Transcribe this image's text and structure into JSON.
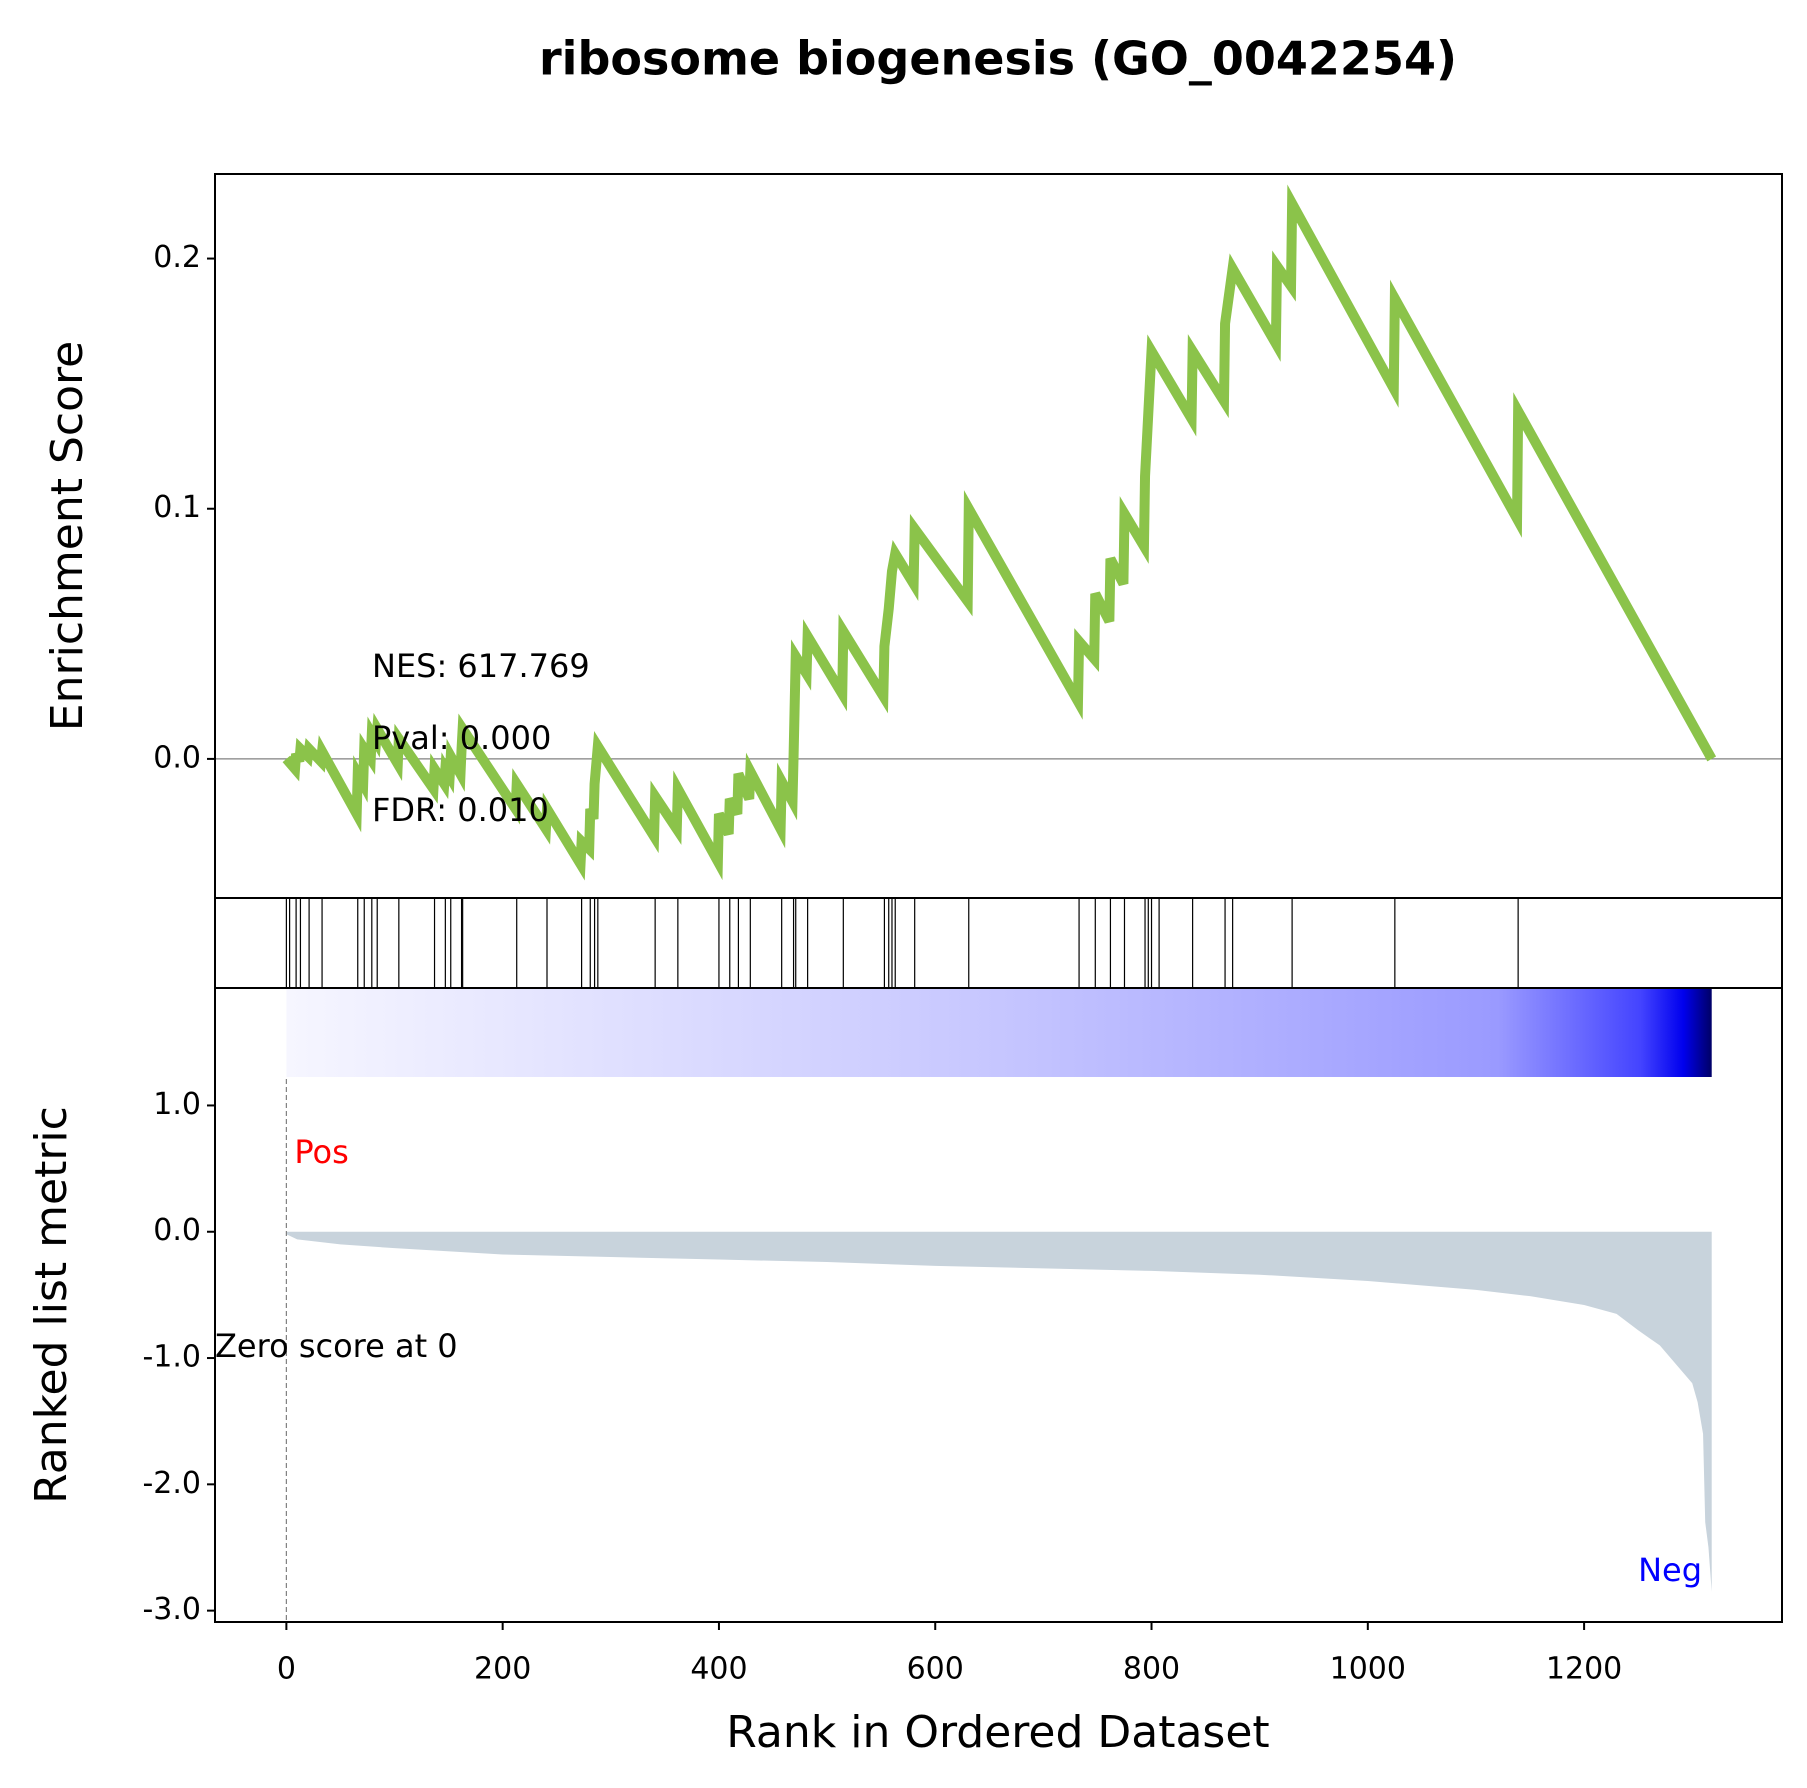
{
  "chart_data": [
    {
      "type": "line",
      "title": "ribosome biogenesis (GO_0042254)",
      "ylabel": "Enrichment Score",
      "color": "#8bc34a",
      "x": [
        0,
        8,
        9,
        12,
        13,
        20,
        21,
        32,
        33,
        65,
        66,
        71,
        72,
        78,
        79,
        83,
        84,
        103,
        104,
        136,
        137,
        146,
        147,
        151,
        152,
        161,
        162,
        163,
        212,
        213,
        240,
        241,
        272,
        273,
        280,
        281,
        284,
        285,
        288,
        340,
        341,
        361,
        362,
        399,
        400,
        409,
        410,
        417,
        418,
        428,
        429,
        457,
        458,
        468,
        469,
        471,
        481,
        482,
        514,
        515,
        552,
        553,
        557,
        560,
        563,
        580,
        581,
        630,
        631,
        732,
        733,
        747,
        748,
        761,
        762,
        774,
        775,
        793,
        794,
        797,
        800,
        837,
        838,
        867,
        868,
        875,
        915,
        916,
        929,
        930,
        1024,
        1025,
        1138,
        1139,
        1318
      ],
      "values": [
        0.0,
        -0.004,
        0.002,
        -0.001,
        0.004,
        0.001,
        0.004,
        -0.001,
        0.003,
        -0.022,
        -0.006,
        -0.01,
        0.004,
        0.0,
        0.01,
        0.007,
        0.012,
        -0.002,
        0.008,
        -0.012,
        -0.004,
        -0.01,
        -0.004,
        -0.007,
        0.001,
        -0.006,
        0.004,
        0.012,
        -0.02,
        -0.01,
        -0.028,
        -0.02,
        -0.042,
        -0.033,
        -0.036,
        -0.02,
        -0.024,
        -0.01,
        0.005,
        -0.031,
        -0.015,
        -0.028,
        -0.012,
        -0.041,
        -0.022,
        -0.03,
        -0.016,
        -0.022,
        -0.006,
        -0.016,
        -0.005,
        -0.028,
        -0.009,
        -0.017,
        0.001,
        0.041,
        0.034,
        0.049,
        0.026,
        0.051,
        0.025,
        0.045,
        0.06,
        0.075,
        0.082,
        0.07,
        0.092,
        0.063,
        0.1,
        0.023,
        0.047,
        0.04,
        0.066,
        0.055,
        0.08,
        0.07,
        0.098,
        0.085,
        0.113,
        0.138,
        0.163,
        0.136,
        0.163,
        0.143,
        0.174,
        0.196,
        0.166,
        0.197,
        0.189,
        0.222,
        0.148,
        0.184,
        0.096,
        0.139,
        0.0
      ],
      "xlim": [
        -66,
        1383
      ],
      "ylim": [
        -0.0556,
        0.2338
      ],
      "yticks": [
        {
          "value": 0,
          "label": "0.0"
        },
        0.1,
        0.2
      ],
      "annotations": [
        "NES: 617.769",
        "Pval: 0.000",
        "FDR: 0.010"
      ]
    },
    {
      "type": "rug",
      "color": "#000000",
      "xlim": [
        -66,
        1383
      ],
      "hits": [
        0,
        3,
        9,
        13,
        21,
        33,
        66,
        72,
        79,
        84,
        104,
        137,
        147,
        152,
        162,
        163,
        213,
        241,
        273,
        281,
        285,
        288,
        341,
        362,
        400,
        410,
        418,
        429,
        458,
        469,
        471,
        482,
        515,
        553,
        557,
        560,
        563,
        581,
        631,
        733,
        748,
        762,
        775,
        794,
        797,
        800,
        807,
        838,
        868,
        875,
        930,
        1025,
        1139
      ]
    },
    {
      "type": "area",
      "ylabel": "Ranked list metric",
      "xlabel": "Rank in Ordered Dataset",
      "color": "#c8d3dc",
      "x": [
        0,
        10,
        50,
        100,
        200,
        300,
        400,
        500,
        600,
        700,
        800,
        900,
        1000,
        1100,
        1150,
        1200,
        1230,
        1250,
        1270,
        1280,
        1290,
        1300,
        1305,
        1310,
        1312,
        1315,
        1318
      ],
      "values": [
        -0.02,
        -0.06,
        -0.1,
        -0.13,
        -0.18,
        -0.2,
        -0.22,
        -0.24,
        -0.27,
        -0.29,
        -0.31,
        -0.34,
        -0.39,
        -0.46,
        -0.51,
        -0.58,
        -0.65,
        -0.78,
        -0.9,
        -1.0,
        -1.1,
        -1.2,
        -1.35,
        -1.6,
        -2.3,
        -2.5,
        -2.85
      ],
      "xlim": [
        -66,
        1383
      ],
      "ylim": [
        -3.09,
        1.93
      ],
      "xticks": [
        0,
        200,
        400,
        600,
        800,
        1000,
        1200
      ],
      "yticks": [
        {
          "value": 1,
          "label": "1.0"
        },
        {
          "value": 0,
          "label": "0.0"
        },
        {
          "value": -1,
          "label": "-1.0"
        },
        {
          "value": -2,
          "label": "-2.0"
        },
        {
          "value": -3,
          "label": "-3.0"
        }
      ],
      "pos_label": "Pos",
      "neg_label": "Neg",
      "zero_label": "Zero score at 0",
      "zero_score_x": 0
    }
  ]
}
